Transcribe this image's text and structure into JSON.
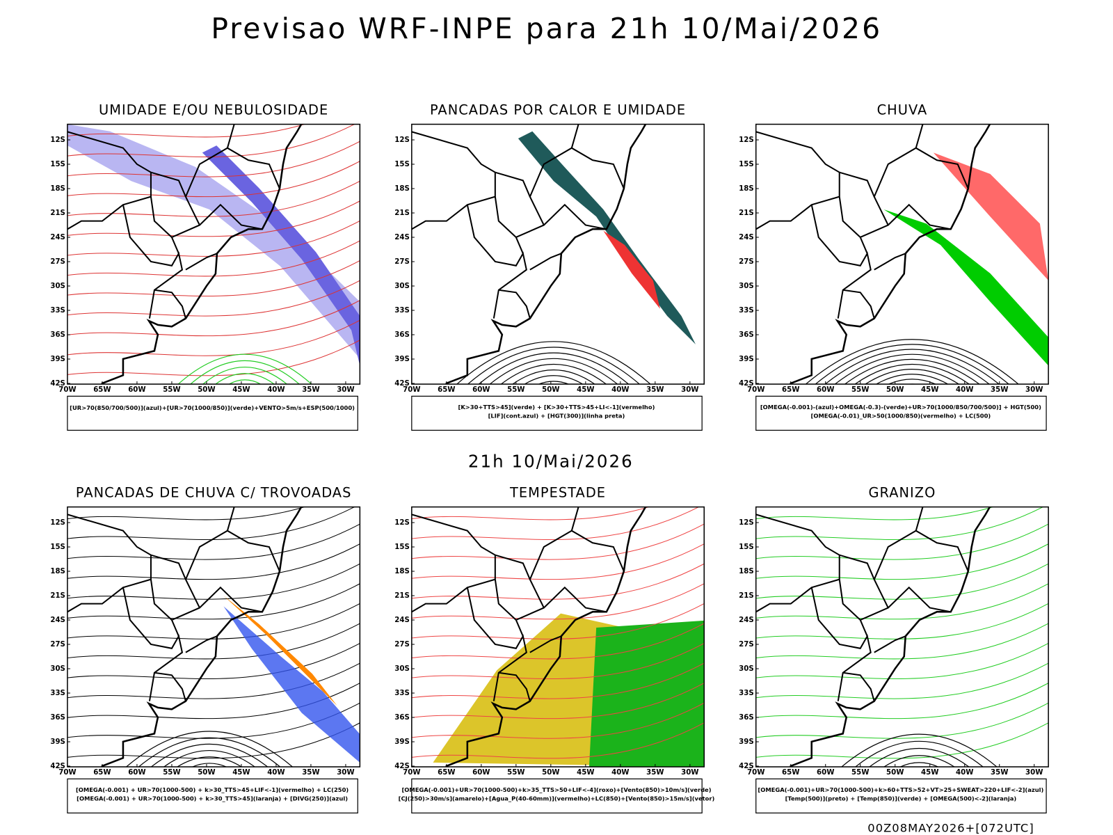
{
  "title": "Previsao WRF-INPE  para 21h 10/Mai/2026",
  "subtitle": "21h 10/Mai/2026",
  "footer": "00Z08MAY2026+[072UTC]",
  "lat_labels": [
    "12S",
    "15S",
    "18S",
    "21S",
    "24S",
    "27S",
    "30S",
    "33S",
    "36S",
    "39S",
    "42S"
  ],
  "lon_labels": [
    "70W",
    "65W",
    "60W",
    "55W",
    "50W",
    "45W",
    "40W",
    "35W",
    "30W"
  ],
  "panels": [
    {
      "title": "UMIDADE E/OU NEBULOSIDADE",
      "legend": [
        "[UR>70(850/700/500)](azul)+[UR>70(1000/850)](verde)+VENTO>5m/s+ESP(500/1000)"
      ]
    },
    {
      "title": "PANCADAS POR CALOR E UMIDADE",
      "legend": [
        "[K>30+TTS>45](verde) + [K>30+TTS>45+LI<-1](vermelho)",
        "[LIF](cont.azul) + [HGT(300)](linha preta)"
      ]
    },
    {
      "title": "CHUVA",
      "legend": [
        "[OMEGA(-0.001)-(azul)+OMEGA(-0.3)-(verde)+UR>70(1000/850/700/500)] + HGT(500)",
        "[OMEGA(-0.01)_UR>50(1000/850)(vermelho) + LC(500)"
      ]
    },
    {
      "title": "PANCADAS DE CHUVA C/ TROVOADAS",
      "legend": [
        "[OMEGA(-0.001) + UR>70(1000-500) + k>30_TTS>45+LIF<-1](vermelho) + LC(250)",
        "[OMEGA(-0.001) + UR>70(1000-500) + k>30_TTS>45](laranja) + [DIVG(250)](azul)"
      ]
    },
    {
      "title": "TEMPESTADE",
      "legend": [
        "[OMEGA(-0.001)+UR>70(1000-500)+k>35_TTS>50+LIF<-4](roxo)+[Vento(850)>10m/s](verde)",
        "[CJ(250)>30m/s](amarelo)+[Agua_P(40-60mm)](vermelho)+LC(850)+[Vento(850)>15m/s](vetor)"
      ]
    },
    {
      "title": "GRANIZO",
      "legend": [
        "[OMEGA(-0.001)+UR>70(1000-500)+k>60+TTS>52+VT>25+SWEAT>220+LIF<-2](azul)",
        "[Temp(500)](preto) + [Temp(850)](verde) + [OMEGA(500)<-2](laranja)"
      ]
    }
  ]
}
